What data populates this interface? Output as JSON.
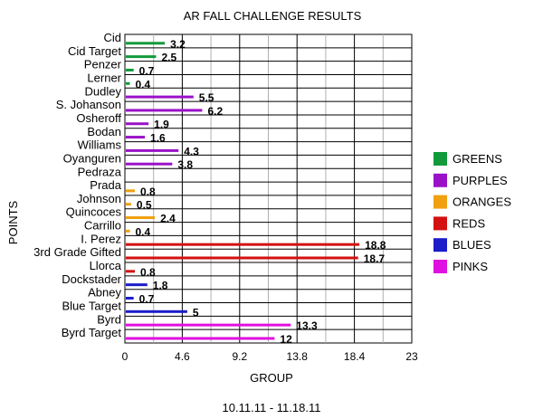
{
  "chart_data": {
    "type": "bar",
    "orientation": "horizontal",
    "title": "AR FALL CHALLENGE RESULTS",
    "subtitle": "10.11.11 - 11.18.11",
    "xlabel": "GROUP",
    "ylabel": "POINTS",
    "xlim": [
      0,
      23
    ],
    "xticks": [
      "0",
      "4.6",
      "9.2",
      "13.8",
      "18.4",
      "23"
    ],
    "grid": true,
    "legend_position": "right",
    "categories": [
      "Cid",
      "Cid Target",
      "Penzer",
      "Lerner",
      "Dudley",
      "S. Johanson",
      "Osheroff",
      "Bodan",
      "Williams",
      "Oyanguren",
      "Pedraza",
      "Prada",
      "Johnson",
      "Quincoces",
      "Carrillo",
      "I. Perez",
      "3rd Grade Gifted",
      "Llorca",
      "Dockstader",
      "Abney",
      "Blue Target",
      "Byrd",
      "Byrd Target"
    ],
    "values": [
      3.2,
      2.5,
      0.7,
      0.4,
      5.5,
      6.2,
      1.9,
      1.6,
      4.3,
      3.8,
      null,
      0.8,
      0.5,
      2.4,
      0.4,
      18.8,
      18.7,
      0.8,
      1.8,
      0.7,
      5,
      13.3,
      12
    ],
    "value_labels": [
      "3.2",
      "2.5",
      "0.7",
      "0.4",
      "5.5",
      "6.2",
      "1.9",
      "1.6",
      "4.3",
      "3.8",
      "",
      "0.8",
      "0.5",
      "2.4",
      "0.4",
      "18.8",
      "18.7",
      "0.8",
      "1.8",
      "0.7",
      "5",
      "13.3",
      "12"
    ],
    "groups": [
      "GREENS",
      "GREENS",
      "GREENS",
      "GREENS",
      "PURPLES",
      "PURPLES",
      "PURPLES",
      "PURPLES",
      "PURPLES",
      "PURPLES",
      "ORANGES",
      "ORANGES",
      "ORANGES",
      "ORANGES",
      "ORANGES",
      "REDS",
      "REDS",
      "REDS",
      "BLUES",
      "BLUES",
      "BLUES",
      "PINKS",
      "PINKS"
    ],
    "legend": [
      {
        "name": "GREENS",
        "color": "#129a3a"
      },
      {
        "name": "PURPLES",
        "color": "#9a12c8"
      },
      {
        "name": "ORANGES",
        "color": "#f0a010"
      },
      {
        "name": "REDS",
        "color": "#d41010"
      },
      {
        "name": "BLUES",
        "color": "#1c1cc8"
      },
      {
        "name": "PINKS",
        "color": "#e010e0"
      }
    ]
  }
}
